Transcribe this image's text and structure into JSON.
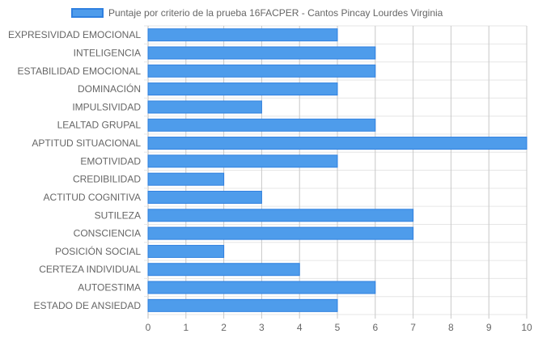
{
  "chart_data": {
    "type": "bar",
    "orientation": "horizontal",
    "categories": [
      "EXPRESIVIDAD EMOCIONAL",
      "INTELIGENCIA",
      "ESTABILIDAD EMOCIONAL",
      "DOMINACIÓN",
      "IMPULSIVIDAD",
      "LEALTAD GRUPAL",
      "APTITUD SITUACIONAL",
      "EMOTIVIDAD",
      "CREDIBILIDAD",
      "ACTITUD COGNITIVA",
      "SUTILEZA",
      "CONSCIENCIA",
      "POSICIÓN SOCIAL",
      "CERTEZA INDIVIDUAL",
      "AUTOESTIMA",
      "ESTADO DE ANSIEDAD"
    ],
    "series": [
      {
        "name": "Puntaje por criterio de la prueba 16FACPER - Cantos Pincay Lourdes Virginia",
        "values": [
          5,
          6,
          6,
          5,
          3,
          6,
          10,
          5,
          2,
          3,
          7,
          7,
          2,
          4,
          6,
          5
        ]
      }
    ],
    "xlim": [
      0,
      10
    ],
    "xticks": [
      "0",
      "1",
      "2",
      "3",
      "4",
      "5",
      "6",
      "7",
      "8",
      "9",
      "10"
    ],
    "grid": true,
    "legend_position": "top",
    "colors": {
      "bar_fill": "#4e9ceb",
      "bar_border": "#2f80e0",
      "grid": "#e6e6e6",
      "label": "#666666"
    }
  }
}
